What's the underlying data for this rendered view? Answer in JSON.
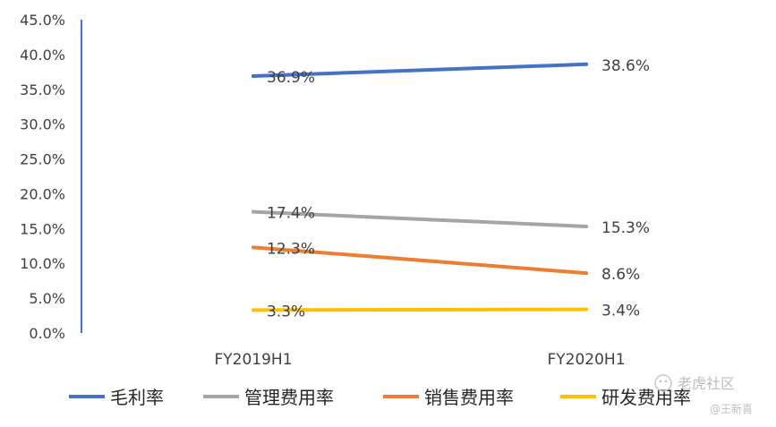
{
  "chart_data": {
    "type": "line",
    "categories": [
      "FY2019H1",
      "FY2020H1"
    ],
    "ylim": [
      0,
      45
    ],
    "y_ticks": [
      "0.0%",
      "5.0%",
      "10.0%",
      "15.0%",
      "20.0%",
      "25.0%",
      "30.0%",
      "35.0%",
      "40.0%",
      "45.0%"
    ],
    "grid": false,
    "legend_position": "bottom",
    "series": [
      {
        "name": "毛利率",
        "values": [
          36.9,
          38.6
        ],
        "labels": [
          "36.9%",
          "38.6%"
        ],
        "color": "#4472C4"
      },
      {
        "name": "管理费用率",
        "values": [
          17.4,
          15.3
        ],
        "labels": [
          "17.4%",
          "15.3%"
        ],
        "color": "#A5A5A5"
      },
      {
        "name": "销售费用率",
        "values": [
          12.3,
          8.6
        ],
        "labels": [
          "12.3%",
          "8.6%"
        ],
        "color": "#ED7D31"
      },
      {
        "name": "研发费用率",
        "values": [
          3.3,
          3.4
        ],
        "labels": [
          "3.3%",
          "3.4%"
        ],
        "color": "#FFC000"
      }
    ]
  },
  "watermark": {
    "text": "老虎社区",
    "author": "@王新喜",
    "icon": "tiger-community-icon"
  }
}
